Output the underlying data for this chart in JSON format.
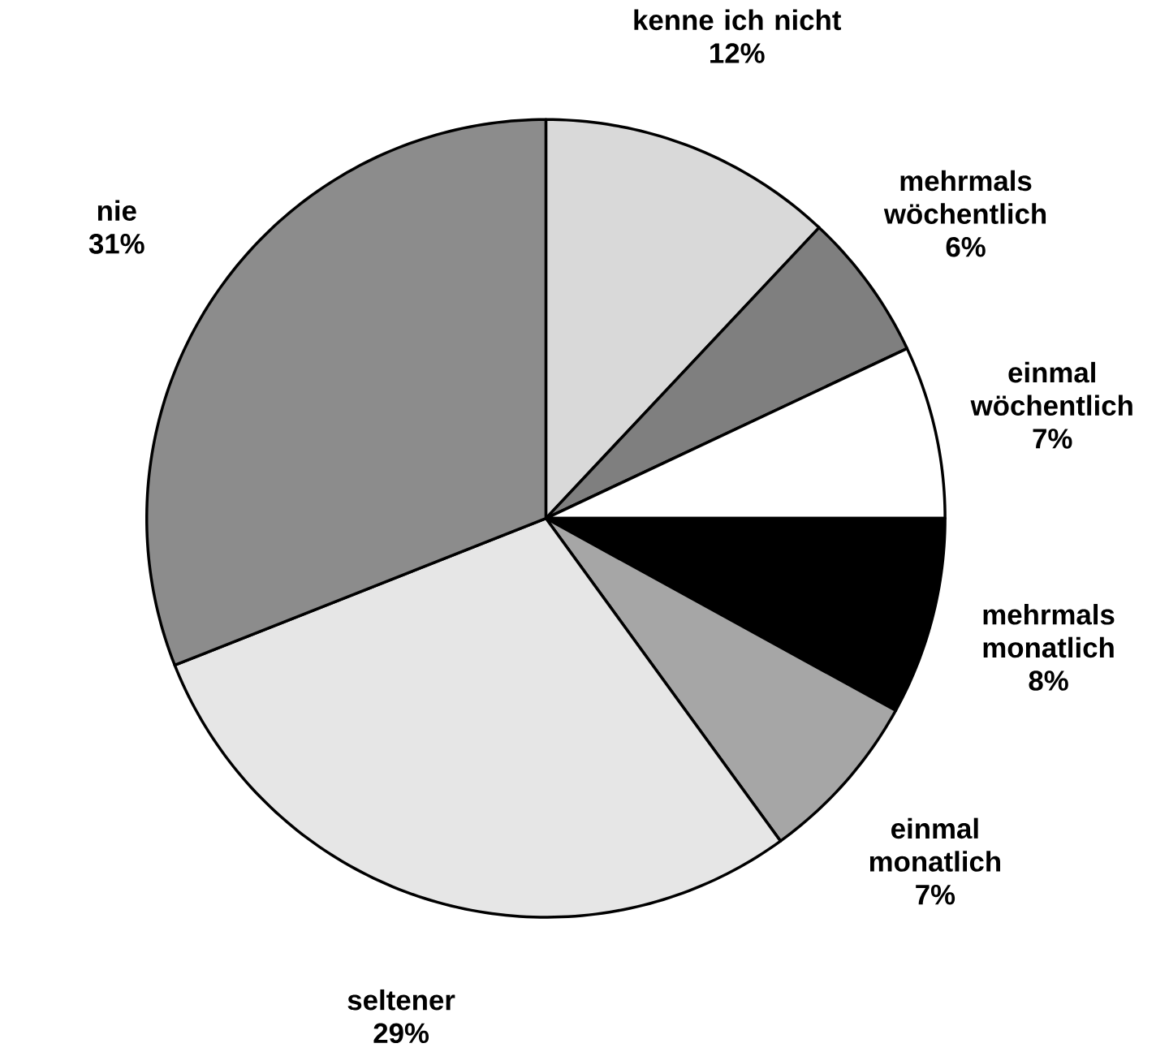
{
  "chart_data": {
    "type": "pie",
    "categories": [
      "kenne ich nicht",
      "mehrmals wöchentlich",
      "einmal wöchentlich",
      "mehrmals monatlich",
      "einmal monatlich",
      "seltener",
      "nie"
    ],
    "values": [
      12,
      6,
      7,
      8,
      7,
      29,
      31
    ],
    "value_labels": [
      "12%",
      "6%",
      "7%",
      "8%",
      "7%",
      "29%",
      "31%"
    ],
    "colors": [
      "#d9d9d9",
      "#7f7f7f",
      "#ffffff",
      "#000000",
      "#a6a6a6",
      "#e6e6e6",
      "#8c8c8c"
    ]
  }
}
